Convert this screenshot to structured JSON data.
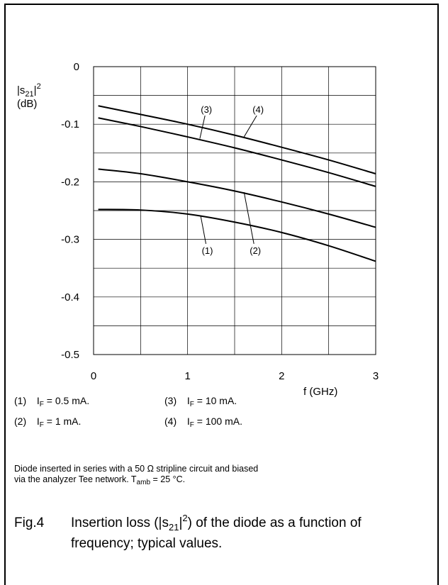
{
  "chart_data": {
    "type": "line",
    "ylabel_parts": {
      "base": "|s",
      "sub": "21",
      "tail": "|",
      "sup": "2"
    },
    "yunit": "(dB)",
    "xlabel": "f (GHz)",
    "xlim": [
      0,
      3
    ],
    "ylim": [
      -0.5,
      0
    ],
    "xticks": [
      0,
      1,
      2,
      3
    ],
    "xtick_labels": [
      "0",
      "1",
      "2",
      "3"
    ],
    "yticks": [
      0,
      -0.1,
      -0.2,
      -0.3,
      -0.4,
      -0.5
    ],
    "ytick_labels": [
      "0",
      "-0.1",
      "-0.2",
      "-0.3",
      "-0.4",
      "-0.5"
    ],
    "grid": true,
    "series": [
      {
        "name": "(1)",
        "x": [
          0.05,
          0.5,
          1.0,
          1.5,
          2.0,
          2.5,
          3.0
        ],
        "y": [
          -0.248,
          -0.249,
          -0.256,
          -0.27,
          -0.288,
          -0.311,
          -0.338
        ]
      },
      {
        "name": "(2)",
        "x": [
          0.05,
          0.5,
          1.0,
          1.5,
          2.0,
          2.5,
          3.0
        ],
        "y": [
          -0.178,
          -0.186,
          -0.2,
          -0.216,
          -0.235,
          -0.256,
          -0.279
        ]
      },
      {
        "name": "(3)",
        "x": [
          0.05,
          0.5,
          1.0,
          1.5,
          2.0,
          2.5,
          3.0
        ],
        "y": [
          -0.089,
          -0.104,
          -0.122,
          -0.141,
          -0.162,
          -0.184,
          -0.208
        ]
      },
      {
        "name": "(4)",
        "x": [
          0.05,
          0.5,
          1.0,
          1.5,
          2.0,
          2.5,
          3.0
        ],
        "y": [
          -0.068,
          -0.083,
          -0.1,
          -0.119,
          -0.14,
          -0.162,
          -0.186
        ]
      }
    ],
    "curve_labels": [
      {
        "text": "(3)",
        "x": 1.2,
        "y": -0.08,
        "pt_x": 1.13,
        "pt_y": -0.125
      },
      {
        "text": "(4)",
        "x": 1.75,
        "y": -0.08,
        "pt_x": 1.6,
        "pt_y": -0.122
      },
      {
        "text": "(1)",
        "x": 1.21,
        "y": -0.325,
        "pt_x": 1.14,
        "pt_y": -0.26
      },
      {
        "text": "(2)",
        "x": 1.72,
        "y": -0.325,
        "pt_x": 1.6,
        "pt_y": -0.218
      }
    ]
  },
  "legend": [
    {
      "num": "(1)",
      "sym": "I",
      "sub": "F",
      "text": " = 0.5 mA."
    },
    {
      "num": "(3)",
      "sym": "I",
      "sub": "F",
      "text": " = 10 mA."
    },
    {
      "num": "(2)",
      "sym": "I",
      "sub": "F",
      "text": " = 1 mA."
    },
    {
      "num": "(4)",
      "sym": "I",
      "sub": "F",
      "text": " = 100 mA."
    }
  ],
  "note": {
    "line1": "Diode inserted in series with a 50 Ω stripline circuit and biased",
    "line2_pre": "via the analyzer Tee network. T",
    "line2_sub": "amb",
    "line2_post": " = 25 °C."
  },
  "caption": {
    "fig": "Fig.4",
    "pre": "Insertion loss (|s",
    "sub": "21",
    "mid": "|",
    "sup": "2",
    "post": ") of the diode as a function of frequency; typical values."
  }
}
